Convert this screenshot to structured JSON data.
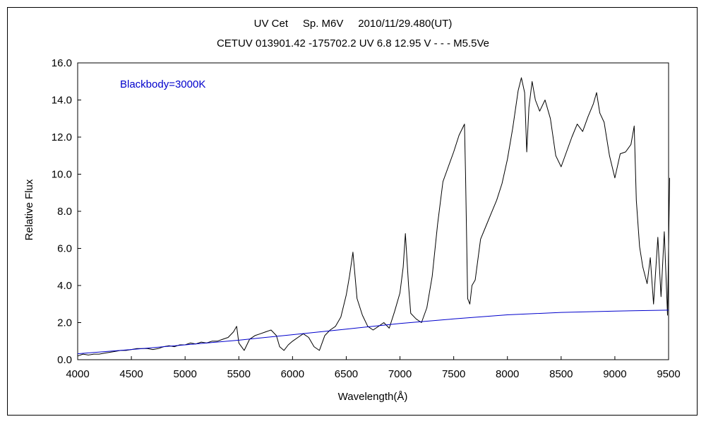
{
  "chart_data": {
    "type": "line",
    "title": "UV Cet     Sp. M6V     2010/11/29.480(UT)",
    "subtitle": "CETUV 013901.42 -175702.2 UV 6.8 12.95 V - - - M5.5Ve",
    "xlabel": "Wavelength(Å)",
    "ylabel": "Relative Flux",
    "xlim": [
      4000,
      9500
    ],
    "ylim": [
      0,
      16
    ],
    "x_ticks": [
      "4000",
      "4500",
      "5000",
      "5500",
      "6000",
      "6500",
      "7000",
      "7500",
      "8000",
      "8500",
      "9000",
      "9500"
    ],
    "y_ticks": [
      "0.0",
      "2.0",
      "4.0",
      "6.0",
      "8.0",
      "10.0",
      "12.0",
      "14.0",
      "16.0"
    ],
    "grid": false,
    "annotations": [
      {
        "text": "Blackbody=3000K",
        "color": "#0000cc"
      }
    ],
    "series": [
      {
        "color": "#000000",
        "x": [
          4000,
          4050,
          4100,
          4150,
          4200,
          4250,
          4300,
          4350,
          4400,
          4450,
          4500,
          4550,
          4600,
          4650,
          4700,
          4750,
          4800,
          4850,
          4900,
          4950,
          5000,
          5050,
          5100,
          5150,
          5200,
          5250,
          5300,
          5350,
          5400,
          5450,
          5480,
          5500,
          5550,
          5600,
          5650,
          5700,
          5750,
          5800,
          5850,
          5880,
          5920,
          5960,
          6000,
          6050,
          6100,
          6150,
          6200,
          6250,
          6300,
          6350,
          6400,
          6450,
          6500,
          6530,
          6562,
          6600,
          6650,
          6700,
          6750,
          6800,
          6850,
          6900,
          6950,
          7000,
          7030,
          7050,
          7080,
          7100,
          7150,
          7200,
          7250,
          7300,
          7350,
          7400,
          7450,
          7500,
          7550,
          7600,
          7610,
          7630,
          7650,
          7670,
          7700,
          7750,
          7800,
          7850,
          7900,
          7950,
          8000,
          8050,
          8100,
          8130,
          8160,
          8180,
          8200,
          8230,
          8260,
          8300,
          8350,
          8400,
          8450,
          8500,
          8550,
          8600,
          8650,
          8700,
          8750,
          8800,
          8830,
          8860,
          8900,
          8950,
          9000,
          9050,
          9100,
          9150,
          9180,
          9200,
          9230,
          9260,
          9300,
          9330,
          9360,
          9400,
          9430,
          9460,
          9490,
          9510
        ],
        "values": [
          0.2,
          0.3,
          0.25,
          0.3,
          0.3,
          0.35,
          0.4,
          0.45,
          0.5,
          0.5,
          0.55,
          0.6,
          0.6,
          0.6,
          0.55,
          0.6,
          0.7,
          0.75,
          0.7,
          0.8,
          0.8,
          0.9,
          0.85,
          0.95,
          0.9,
          1.0,
          1.0,
          1.1,
          1.2,
          1.5,
          1.8,
          0.9,
          0.5,
          1.1,
          1.3,
          1.4,
          1.5,
          1.6,
          1.3,
          0.7,
          0.5,
          0.8,
          1.0,
          1.2,
          1.4,
          1.2,
          0.7,
          0.5,
          1.3,
          1.6,
          1.8,
          2.3,
          3.5,
          4.5,
          5.8,
          3.3,
          2.4,
          1.8,
          1.6,
          1.8,
          2.0,
          1.7,
          2.6,
          3.6,
          5.0,
          6.8,
          4.0,
          2.5,
          2.2,
          2.0,
          2.8,
          4.5,
          7.3,
          9.6,
          10.4,
          11.2,
          12.1,
          12.7,
          10.0,
          3.3,
          3.0,
          4.0,
          4.3,
          6.5,
          7.2,
          7.9,
          8.6,
          9.5,
          10.8,
          12.5,
          14.5,
          15.2,
          14.4,
          11.2,
          13.6,
          15.0,
          14.0,
          13.4,
          14.0,
          13.0,
          11.0,
          10.4,
          11.2,
          12.0,
          12.7,
          12.3,
          13.1,
          13.8,
          14.4,
          13.3,
          12.8,
          11.0,
          9.8,
          11.1,
          11.2,
          11.6,
          12.6,
          8.6,
          6.1,
          5.0,
          4.1,
          5.5,
          3.0,
          6.6,
          3.4,
          6.9,
          2.4,
          9.8
        ]
      },
      {
        "color": "#0000cc",
        "x": [
          4000,
          4500,
          5000,
          5500,
          6000,
          6500,
          7000,
          7500,
          8000,
          8500,
          9000,
          9500
        ],
        "values": [
          0.32,
          0.55,
          0.8,
          1.05,
          1.35,
          1.65,
          1.95,
          2.2,
          2.42,
          2.55,
          2.62,
          2.67
        ]
      }
    ]
  }
}
